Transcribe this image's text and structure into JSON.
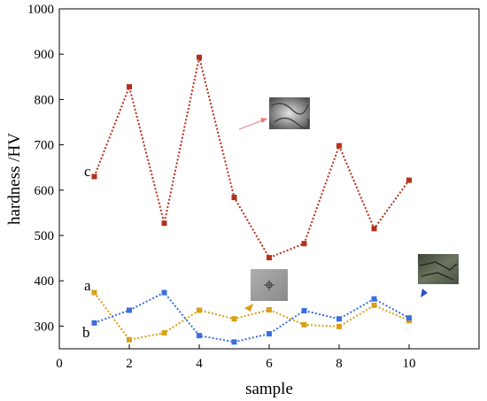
{
  "chart_data": {
    "type": "line",
    "title": "",
    "xlabel": "sample",
    "ylabel": "hardness /HV",
    "xlim": [
      0,
      12
    ],
    "ylim": [
      250,
      1000
    ],
    "xticks": [
      0,
      2,
      4,
      6,
      8,
      10
    ],
    "yticks": [
      300,
      400,
      500,
      600,
      700,
      800,
      900,
      1000
    ],
    "grid": false,
    "legend": "none",
    "x": [
      1,
      2,
      3,
      4,
      5,
      6,
      7,
      8,
      9,
      10
    ],
    "series": [
      {
        "name": "c",
        "color": "#b5301c",
        "values": [
          630,
          828,
          527,
          893,
          584,
          451,
          482,
          698,
          515,
          622
        ]
      },
      {
        "name": "a",
        "color": "#d8a017",
        "values": [
          374,
          270,
          285,
          335,
          316,
          336,
          303,
          299,
          346,
          312
        ]
      },
      {
        "name": "b",
        "color": "#3a6fdc",
        "values": [
          307,
          335,
          374,
          279,
          265,
          283,
          334,
          316,
          360,
          318
        ]
      }
    ],
    "annotations": [
      {
        "name": "microstructure-c",
        "series": "c",
        "arrow_color": "#e08080"
      },
      {
        "name": "microstructure-a",
        "series": "a",
        "arrow_color": "#d8a017"
      },
      {
        "name": "microstructure-b",
        "series": "b",
        "arrow_color": "#2b4fc8"
      }
    ]
  }
}
